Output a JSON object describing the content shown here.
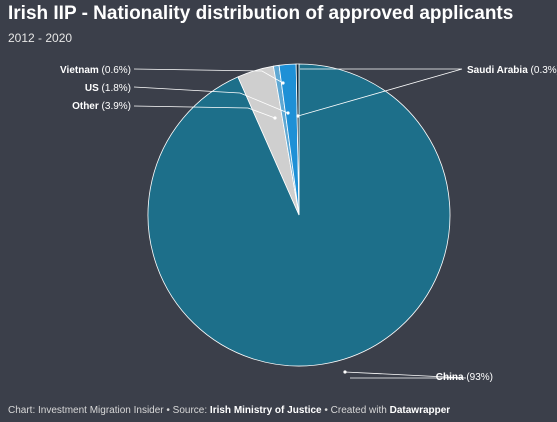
{
  "title": "Irish IIP - Nationality distribution of approved applicants",
  "subtitle": "2012 - 2020",
  "chart_data": {
    "type": "pie",
    "title": "Irish IIP - Nationality distribution of approved applicants",
    "subtitle": "2012 - 2020",
    "slices": [
      {
        "name": "China",
        "label": "China",
        "pct_text": "(93%)",
        "value": 93,
        "color": "#1d6f8a"
      },
      {
        "name": "Other",
        "label": "Other",
        "pct_text": "(3.9%)",
        "value": 3.9,
        "color": "#cfcfcf"
      },
      {
        "name": "Vietnam",
        "label": "Vietnam",
        "pct_text": "(0.6%)",
        "value": 0.6,
        "color": "#5fa8d3"
      },
      {
        "name": "US",
        "label": "US",
        "pct_text": "(1.8%)",
        "value": 1.8,
        "color": "#1e90d6"
      },
      {
        "name": "Saudi Arabia",
        "label": "Saudi Arabia",
        "pct_text": "(0.3%)",
        "value": 0.3,
        "color": "#0e2a3d"
      }
    ]
  },
  "footer": {
    "prefix": "Chart: Investment Migration Insider • Source: ",
    "source": "Irish Ministry of Justice",
    "middle": " • Created with ",
    "tool": "Datawrapper"
  }
}
